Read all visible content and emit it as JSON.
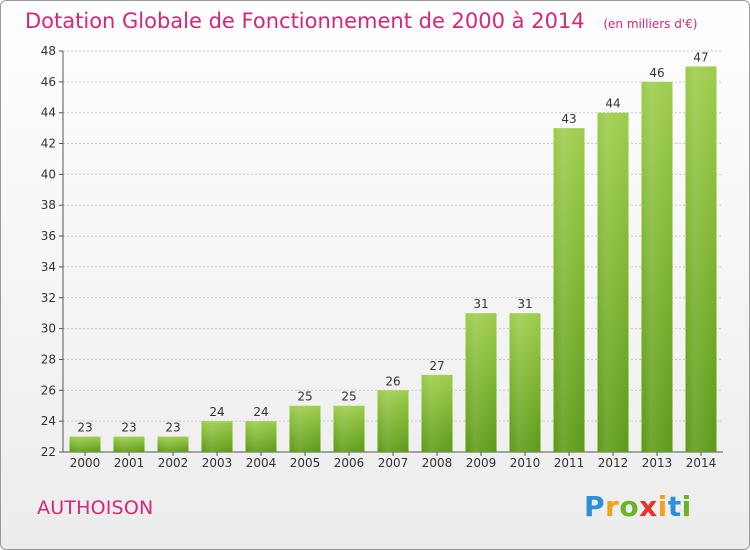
{
  "header": {
    "title": "Dotation Globale de Fonctionnement de 2000 à 2014",
    "subtitle": "(en milliers d'€)"
  },
  "footer": {
    "commune": "AUTHOISON",
    "logo_text": "Proxiti"
  },
  "colors": {
    "accent": "#d6257a",
    "bar_top": "#9ccd4a",
    "bar_bottom": "#5c9a16",
    "grid": "#c8c8c8"
  },
  "chart_data": {
    "type": "bar",
    "title": "Dotation Globale de Fonctionnement de 2000 à 2014",
    "subtitle": "(en milliers d'€)",
    "categories": [
      "2000",
      "2001",
      "2002",
      "2003",
      "2004",
      "2005",
      "2006",
      "2007",
      "2008",
      "2009",
      "2010",
      "2011",
      "2012",
      "2013",
      "2014"
    ],
    "values": [
      23,
      23,
      23,
      24,
      24,
      25,
      25,
      26,
      27,
      31,
      31,
      43,
      44,
      46,
      47
    ],
    "ylim": [
      22,
      48
    ],
    "yticks": [
      22,
      24,
      26,
      28,
      30,
      32,
      34,
      36,
      38,
      40,
      42,
      44,
      46,
      48
    ],
    "grid": true,
    "data_labels": true
  }
}
